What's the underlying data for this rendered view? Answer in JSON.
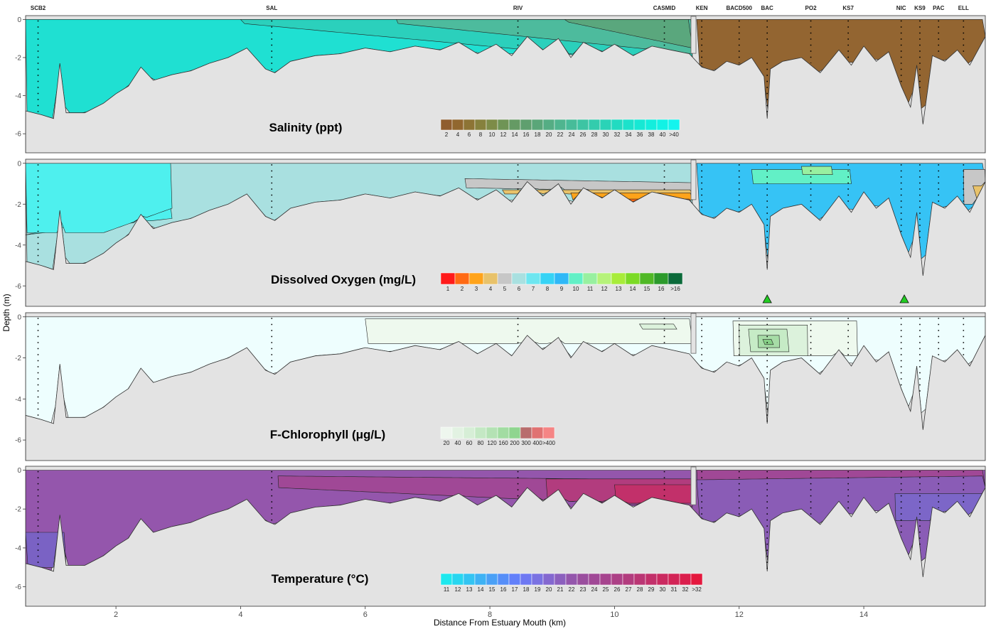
{
  "chart_data": {
    "type": "contour-transect",
    "xlabel": "Distance From Estuary Mouth (km)",
    "ylabel": "Depth (m)",
    "xlim": [
      0.55,
      15.95
    ],
    "x_ticks": [
      "2",
      "4",
      "6",
      "8",
      "10",
      "12",
      "14"
    ],
    "x_tick_values": [
      2,
      4,
      6,
      8,
      10,
      12,
      14
    ],
    "ylim": [
      -7,
      0.2
    ],
    "y_ticks": [
      "0",
      "-2",
      "-4",
      "-6"
    ],
    "y_tick_values": [
      0,
      -2,
      -4,
      -6
    ],
    "gap_marker_km": 11.25,
    "stations": [
      {
        "name": "SCB2",
        "km": 0.75
      },
      {
        "name": "SAL",
        "km": 4.5
      },
      {
        "name": "RIV",
        "km": 8.45
      },
      {
        "name": "CASMID",
        "km": 10.8
      },
      {
        "name": "KEN",
        "km": 11.4
      },
      {
        "name": "BACD500",
        "km": 12.0
      },
      {
        "name": "BAC",
        "km": 12.45
      },
      {
        "name": "PO2",
        "km": 13.15
      },
      {
        "name": "KS7",
        "km": 13.75
      },
      {
        "name": "NIC",
        "km": 14.6
      },
      {
        "name": "KS9",
        "km": 14.9
      },
      {
        "name": "PAC",
        "km": 15.2
      },
      {
        "name": "ELL",
        "km": 15.6
      }
    ],
    "bottom_depth_profile": {
      "x": [
        0.55,
        0.8,
        1.0,
        1.1,
        1.2,
        1.5,
        1.8,
        2.0,
        2.2,
        2.4,
        2.6,
        2.9,
        3.2,
        3.5,
        3.8,
        4.1,
        4.4,
        4.55,
        4.8,
        5.2,
        5.6,
        6.0,
        6.4,
        6.8,
        7.2,
        7.5,
        7.8,
        8.1,
        8.35,
        8.6,
        8.85,
        9.1,
        9.3,
        9.5,
        9.8,
        10.0,
        10.3,
        10.6,
        10.9,
        11.2,
        11.4,
        11.6,
        11.8,
        12.0,
        12.2,
        12.4,
        12.45,
        12.5,
        12.7,
        13.0,
        13.3,
        13.6,
        13.8,
        14.0,
        14.2,
        14.4,
        14.6,
        14.75,
        14.85,
        14.95,
        15.1,
        15.3,
        15.5,
        15.7,
        15.95
      ],
      "depth": [
        -4.8,
        -5.0,
        -5.2,
        -2.3,
        -4.9,
        -4.9,
        -4.4,
        -3.9,
        -3.5,
        -2.5,
        -3.2,
        -2.9,
        -2.7,
        -2.3,
        -2.0,
        -1.5,
        -2.6,
        -2.8,
        -2.2,
        -1.9,
        -1.8,
        -1.5,
        -1.7,
        -1.4,
        -1.6,
        -1.2,
        -1.8,
        -1.3,
        -1.9,
        -0.9,
        -1.6,
        -1.0,
        -2.0,
        -1.2,
        -1.7,
        -1.3,
        -1.9,
        -1.4,
        -1.6,
        -1.8,
        -2.5,
        -2.7,
        -2.2,
        -2.4,
        -2.0,
        -3.0,
        -5.2,
        -2.6,
        -2.2,
        -2.0,
        -2.8,
        -1.6,
        -2.4,
        -1.4,
        -2.2,
        -1.7,
        -3.5,
        -4.6,
        -2.4,
        -5.5,
        -1.9,
        -2.2,
        -1.6,
        -2.4,
        -0.9
      ]
    },
    "panels": [
      {
        "title": "Salinity (ppt)",
        "legend_labels": [
          "2",
          "4",
          "6",
          "8",
          "10",
          "12",
          "14",
          "16",
          "18",
          "20",
          "22",
          "24",
          "26",
          "28",
          "30",
          "32",
          "34",
          "36",
          "38",
          "40",
          ">40"
        ],
        "legend_colors": [
          "#8f5d2e",
          "#91672f",
          "#8d7435",
          "#86813d",
          "#7d8c48",
          "#6f9456",
          "#659a64",
          "#5f9f6f",
          "#5aa679",
          "#55ad84",
          "#4fb58f",
          "#47bc99",
          "#3dc4a3",
          "#33ccad",
          "#2ad3b7",
          "#22dbc1",
          "#1ce2cb",
          "#17e8d4",
          "#13eedd",
          "#12f2e5",
          "#14f4ee"
        ],
        "region_colors": [
          "#1fe0d2",
          "#2bd0bc",
          "#4dbb9d",
          "#5aa77d",
          "#6f9a6e",
          "#936531"
        ]
      },
      {
        "title": "Dissolved Oxygen (mg/L)",
        "legend_labels": [
          "1",
          "2",
          "3",
          "4",
          "5",
          "6",
          "7",
          "8",
          "9",
          "10",
          "11",
          "12",
          "13",
          "14",
          "15",
          "16",
          ">16"
        ],
        "legend_colors": [
          "#ff1a1a",
          "#ff6a14",
          "#ffa31a",
          "#e8c26a",
          "#c7c7c7",
          "#a9e0e0",
          "#6ee6f0",
          "#36d3f5",
          "#2fb8f7",
          "#62f0c6",
          "#98f0a0",
          "#b6f27a",
          "#a8ec3a",
          "#7cda26",
          "#50b826",
          "#2c9a2c",
          "#0b6a3a"
        ],
        "region_colors": [
          "#a9e0e0",
          "#4ef0ee",
          "#c7c7c7",
          "#e8c26a",
          "#ffa31a",
          "#ff6a14",
          "#ff1a1a",
          "#36c3f5",
          "#62f0c6",
          "#98f0a0",
          "#b6f27a"
        ],
        "markers": [
          {
            "km": 12.45,
            "shape": "triangle",
            "color": "#22cc22"
          },
          {
            "km": 14.65,
            "shape": "triangle",
            "color": "#22cc22"
          }
        ]
      },
      {
        "title": "F-Chlorophyll (μg/L)",
        "legend_labels": [
          "20",
          "40",
          "60",
          "80",
          "120",
          "160",
          "200",
          "300",
          "400",
          ">400"
        ],
        "legend_colors": [
          "#eef6ee",
          "#e2f2e2",
          "#d6eed6",
          "#c4e8c4",
          "#b4e2b4",
          "#a2dca2",
          "#8fd58f",
          "#b86d6d",
          "#e07272",
          "#f58585"
        ],
        "region_colors": [
          "#eefefe",
          "#eef9ee",
          "#dcf2dc",
          "#c6ebc6",
          "#a6dca6",
          "#86cf86"
        ]
      },
      {
        "title": "Temperature (°C)",
        "legend_labels": [
          "11",
          "12",
          "13",
          "14",
          "15",
          "16",
          "17",
          "18",
          "19",
          "20",
          "21",
          "22",
          "23",
          "24",
          "25",
          "26",
          "27",
          "28",
          "29",
          "30",
          "31",
          "32",
          ">32"
        ],
        "legend_colors": [
          "#1ee8ee",
          "#28d6f0",
          "#33c4f2",
          "#3eb2f4",
          "#4aa0f6",
          "#568ef8",
          "#6280fa",
          "#6e78f2",
          "#7a72e2",
          "#8468d0",
          "#8c60be",
          "#9456ac",
          "#9a4e9e",
          "#a04896",
          "#a6448e",
          "#ac4086",
          "#b23c7e",
          "#ba3674",
          "#c2306a",
          "#ca2a60",
          "#d22456",
          "#da1e4c",
          "#e4183e"
        ],
        "region_colors": [
          "#9456ac",
          "#7a62c4",
          "#a04896",
          "#b23c7e",
          "#c2306a",
          "#8a5cb6",
          "#7c66c8"
        ]
      }
    ]
  }
}
